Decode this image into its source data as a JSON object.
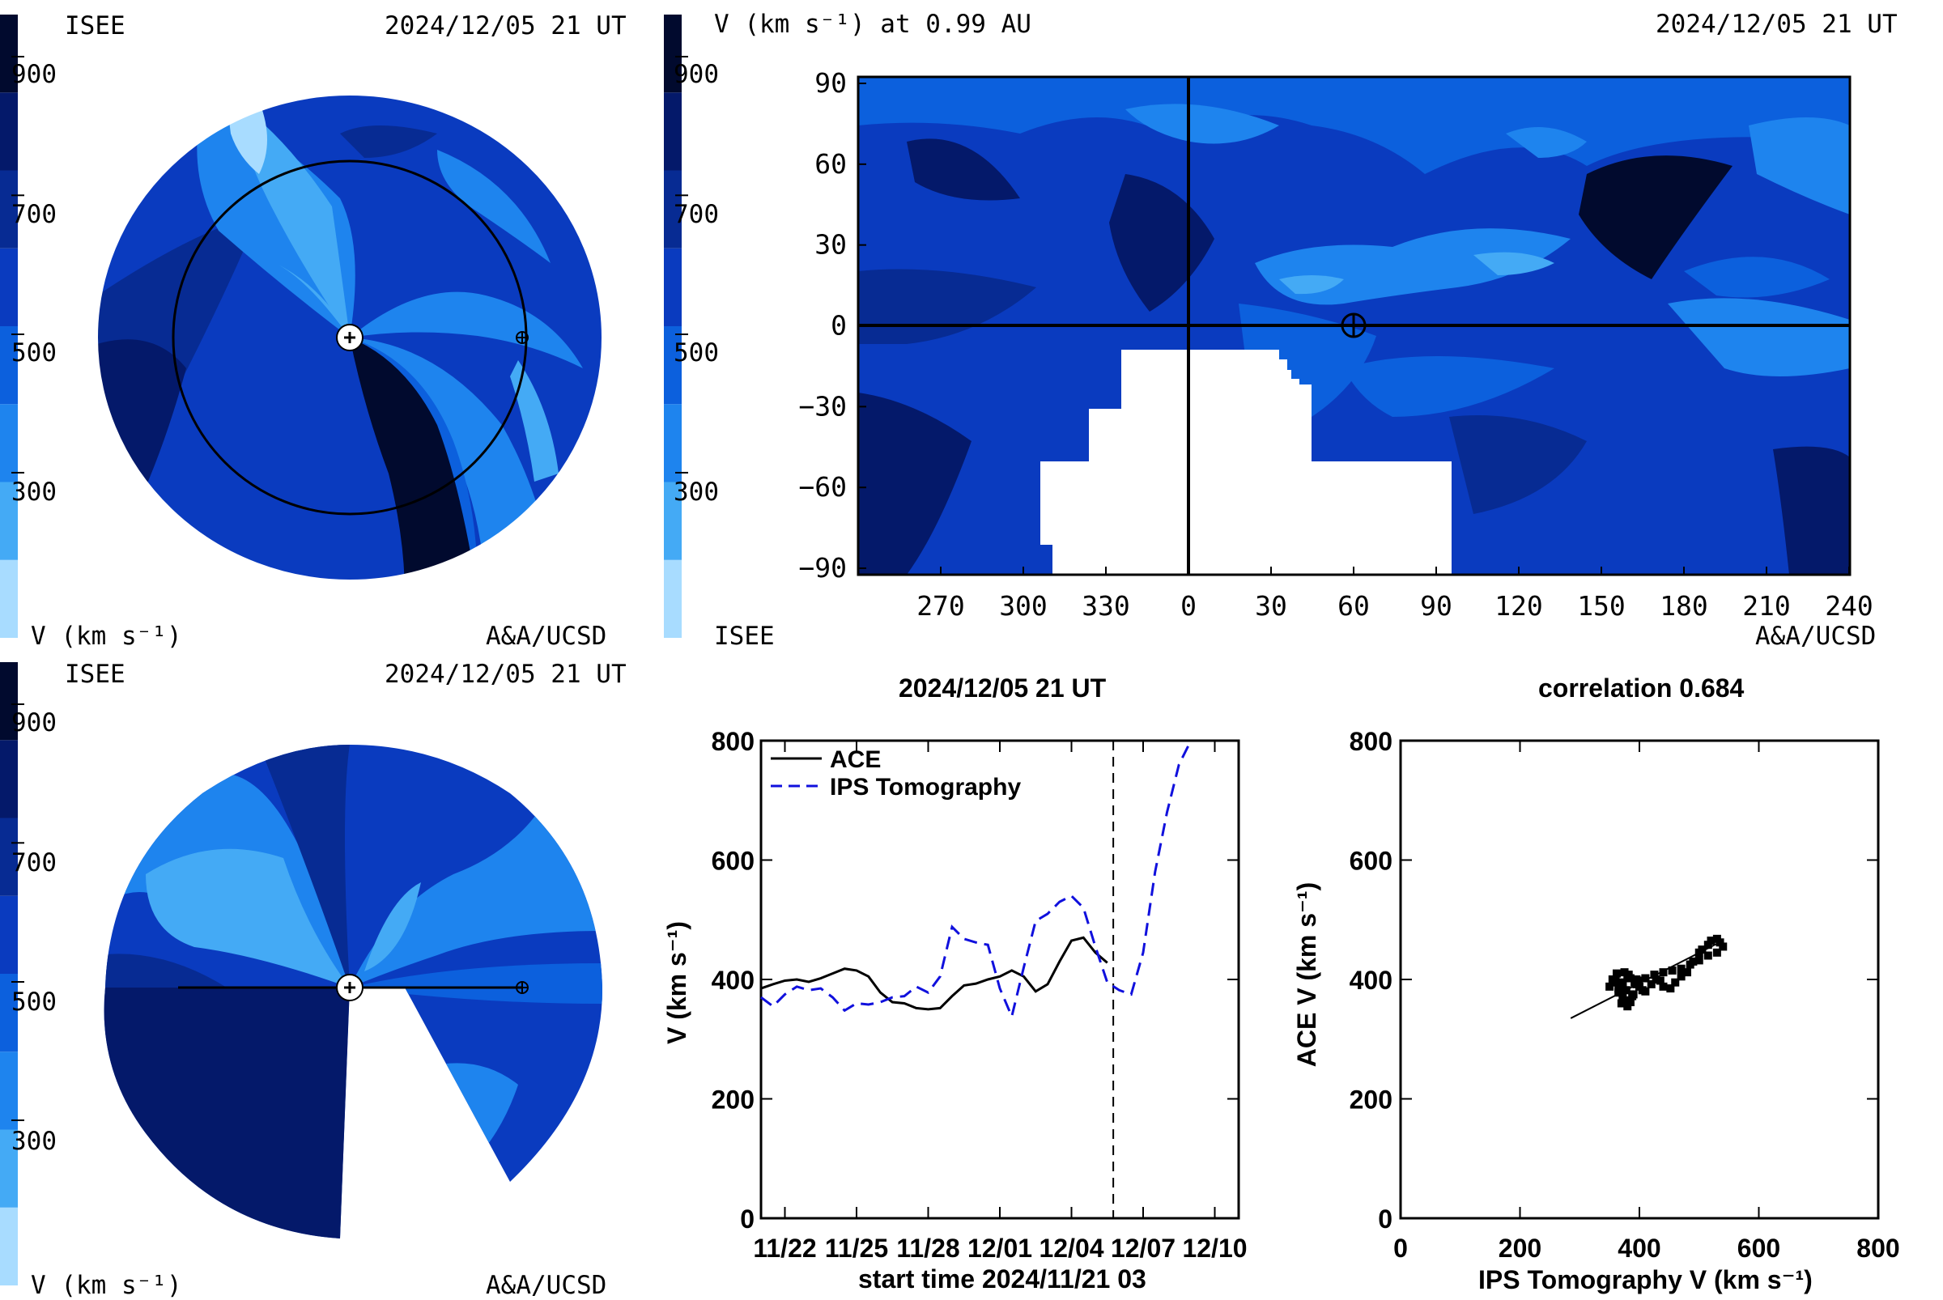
{
  "colors": {
    "bands": [
      "#a8dcff",
      "#44aaf5",
      "#1e84ee",
      "#0c60dd",
      "#0a3bbf",
      "#072b93",
      "#04196a",
      "#010a2e"
    ],
    "plot_line_ace": "#000000",
    "plot_line_ips": "#1010dd"
  },
  "colorbar_ticks": [
    "900",
    "700",
    "500",
    "300"
  ],
  "panel_ecliptic": {
    "org": "ISEE",
    "timestamp": "2024/12/05 21 UT",
    "cb_label": "V (km s⁻¹)",
    "credit": "A&A/UCSD"
  },
  "panel_map": {
    "title": "V (km s⁻¹) at 0.99 AU",
    "timestamp": "2024/12/05 21 UT",
    "org": "ISEE",
    "credit": "A&A/UCSD",
    "y_ticks": [
      "90",
      "60",
      "30",
      "0",
      "−30",
      "−60",
      "−90"
    ],
    "x_ticks": [
      "270",
      "300",
      "330",
      "0",
      "30",
      "60",
      "90",
      "120",
      "150",
      "180",
      "210",
      "240"
    ]
  },
  "panel_meridional": {
    "org": "ISEE",
    "timestamp": "2024/12/05 21 UT",
    "cb_label": "V (km s⁻¹)",
    "credit": "A&A/UCSD"
  },
  "chart_data": [
    {
      "type": "line",
      "title": "2024/12/05 21 UT",
      "xlabel": "start time 2024/11/21 03",
      "ylabel": "V (km s⁻¹)",
      "x_ticks": [
        "11/22",
        "11/25",
        "11/28",
        "12/01",
        "12/04",
        "12/07",
        "12/10"
      ],
      "y_ticks": [
        "0",
        "200",
        "400",
        "600",
        "800"
      ],
      "ylim": [
        0,
        800
      ],
      "xlim_days": [
        0,
        20
      ],
      "vline_day": 14.75,
      "legend": "top-left",
      "series": [
        {
          "name": "ACE",
          "style": "solid",
          "x": [
            0,
            0.5,
            1,
            1.5,
            2,
            2.5,
            3,
            3.5,
            4,
            4.5,
            5,
            5.5,
            6,
            6.5,
            7,
            7.5,
            8,
            8.5,
            9,
            9.5,
            10,
            10.5,
            11,
            11.5,
            12,
            12.5,
            13,
            13.5,
            14,
            14.5
          ],
          "y": [
            385,
            392,
            398,
            400,
            396,
            402,
            410,
            418,
            415,
            405,
            378,
            362,
            360,
            352,
            350,
            352,
            372,
            390,
            393,
            400,
            405,
            415,
            405,
            380,
            392,
            430,
            465,
            470,
            445,
            428
          ]
        },
        {
          "name": "IPS Tomography",
          "style": "dashed",
          "x": [
            0,
            0.5,
            1,
            1.5,
            2,
            2.5,
            3,
            3.5,
            4,
            4.5,
            5,
            5.5,
            6,
            6.5,
            7,
            7.5,
            8,
            8.5,
            9,
            9.5,
            10,
            10.5,
            11,
            11.5,
            12,
            12.5,
            13,
            13.5,
            14,
            14.5,
            15,
            15.5,
            16,
            16.5,
            17,
            17.5,
            18
          ],
          "y": [
            370,
            355,
            375,
            388,
            382,
            385,
            370,
            348,
            360,
            358,
            362,
            370,
            372,
            388,
            378,
            405,
            488,
            468,
            462,
            458,
            385,
            338,
            420,
            498,
            510,
            530,
            540,
            520,
            455,
            395,
            382,
            375,
            445,
            580,
            680,
            760,
            815
          ]
        }
      ]
    },
    {
      "type": "scatter",
      "title": "correlation 0.684",
      "xlabel": "IPS Tomography V (km s⁻¹)",
      "ylabel": "ACE V (km s⁻¹)",
      "x_ticks": [
        "0",
        "200",
        "400",
        "600",
        "800"
      ],
      "y_ticks": [
        "0",
        "200",
        "400",
        "600",
        "800"
      ],
      "xlim": [
        0,
        800
      ],
      "ylim": [
        0,
        800
      ],
      "series": [
        {
          "name": "",
          "x": [
            355,
            360,
            365,
            370,
            372,
            378,
            380,
            385,
            390,
            350,
            362,
            375,
            382,
            392,
            395,
            400,
            405,
            410,
            420,
            428,
            435,
            440,
            452,
            460,
            470,
            480,
            490,
            500,
            505,
            515,
            520,
            530,
            535,
            540,
            530,
            515,
            500,
            485,
            470,
            455,
            440,
            425,
            410,
            398,
            385,
            372,
            360,
            368,
            378,
            388,
            370,
            365,
            380,
            395,
            372
          ],
          "y": [
            400,
            395,
            385,
            380,
            372,
            365,
            355,
            362,
            375,
            388,
            410,
            412,
            408,
            395,
            392,
            388,
            382,
            380,
            392,
            400,
            398,
            388,
            385,
            395,
            405,
            412,
            430,
            445,
            450,
            458,
            465,
            468,
            462,
            455,
            445,
            440,
            432,
            425,
            418,
            415,
            412,
            408,
            402,
            398,
            402,
            395,
            398,
            392,
            382,
            372,
            360,
            378,
            405,
            400,
            390
          ]
        }
      ],
      "fit_line": {
        "x": [
          285,
          530
        ],
        "y": [
          335,
          460
        ]
      }
    }
  ]
}
